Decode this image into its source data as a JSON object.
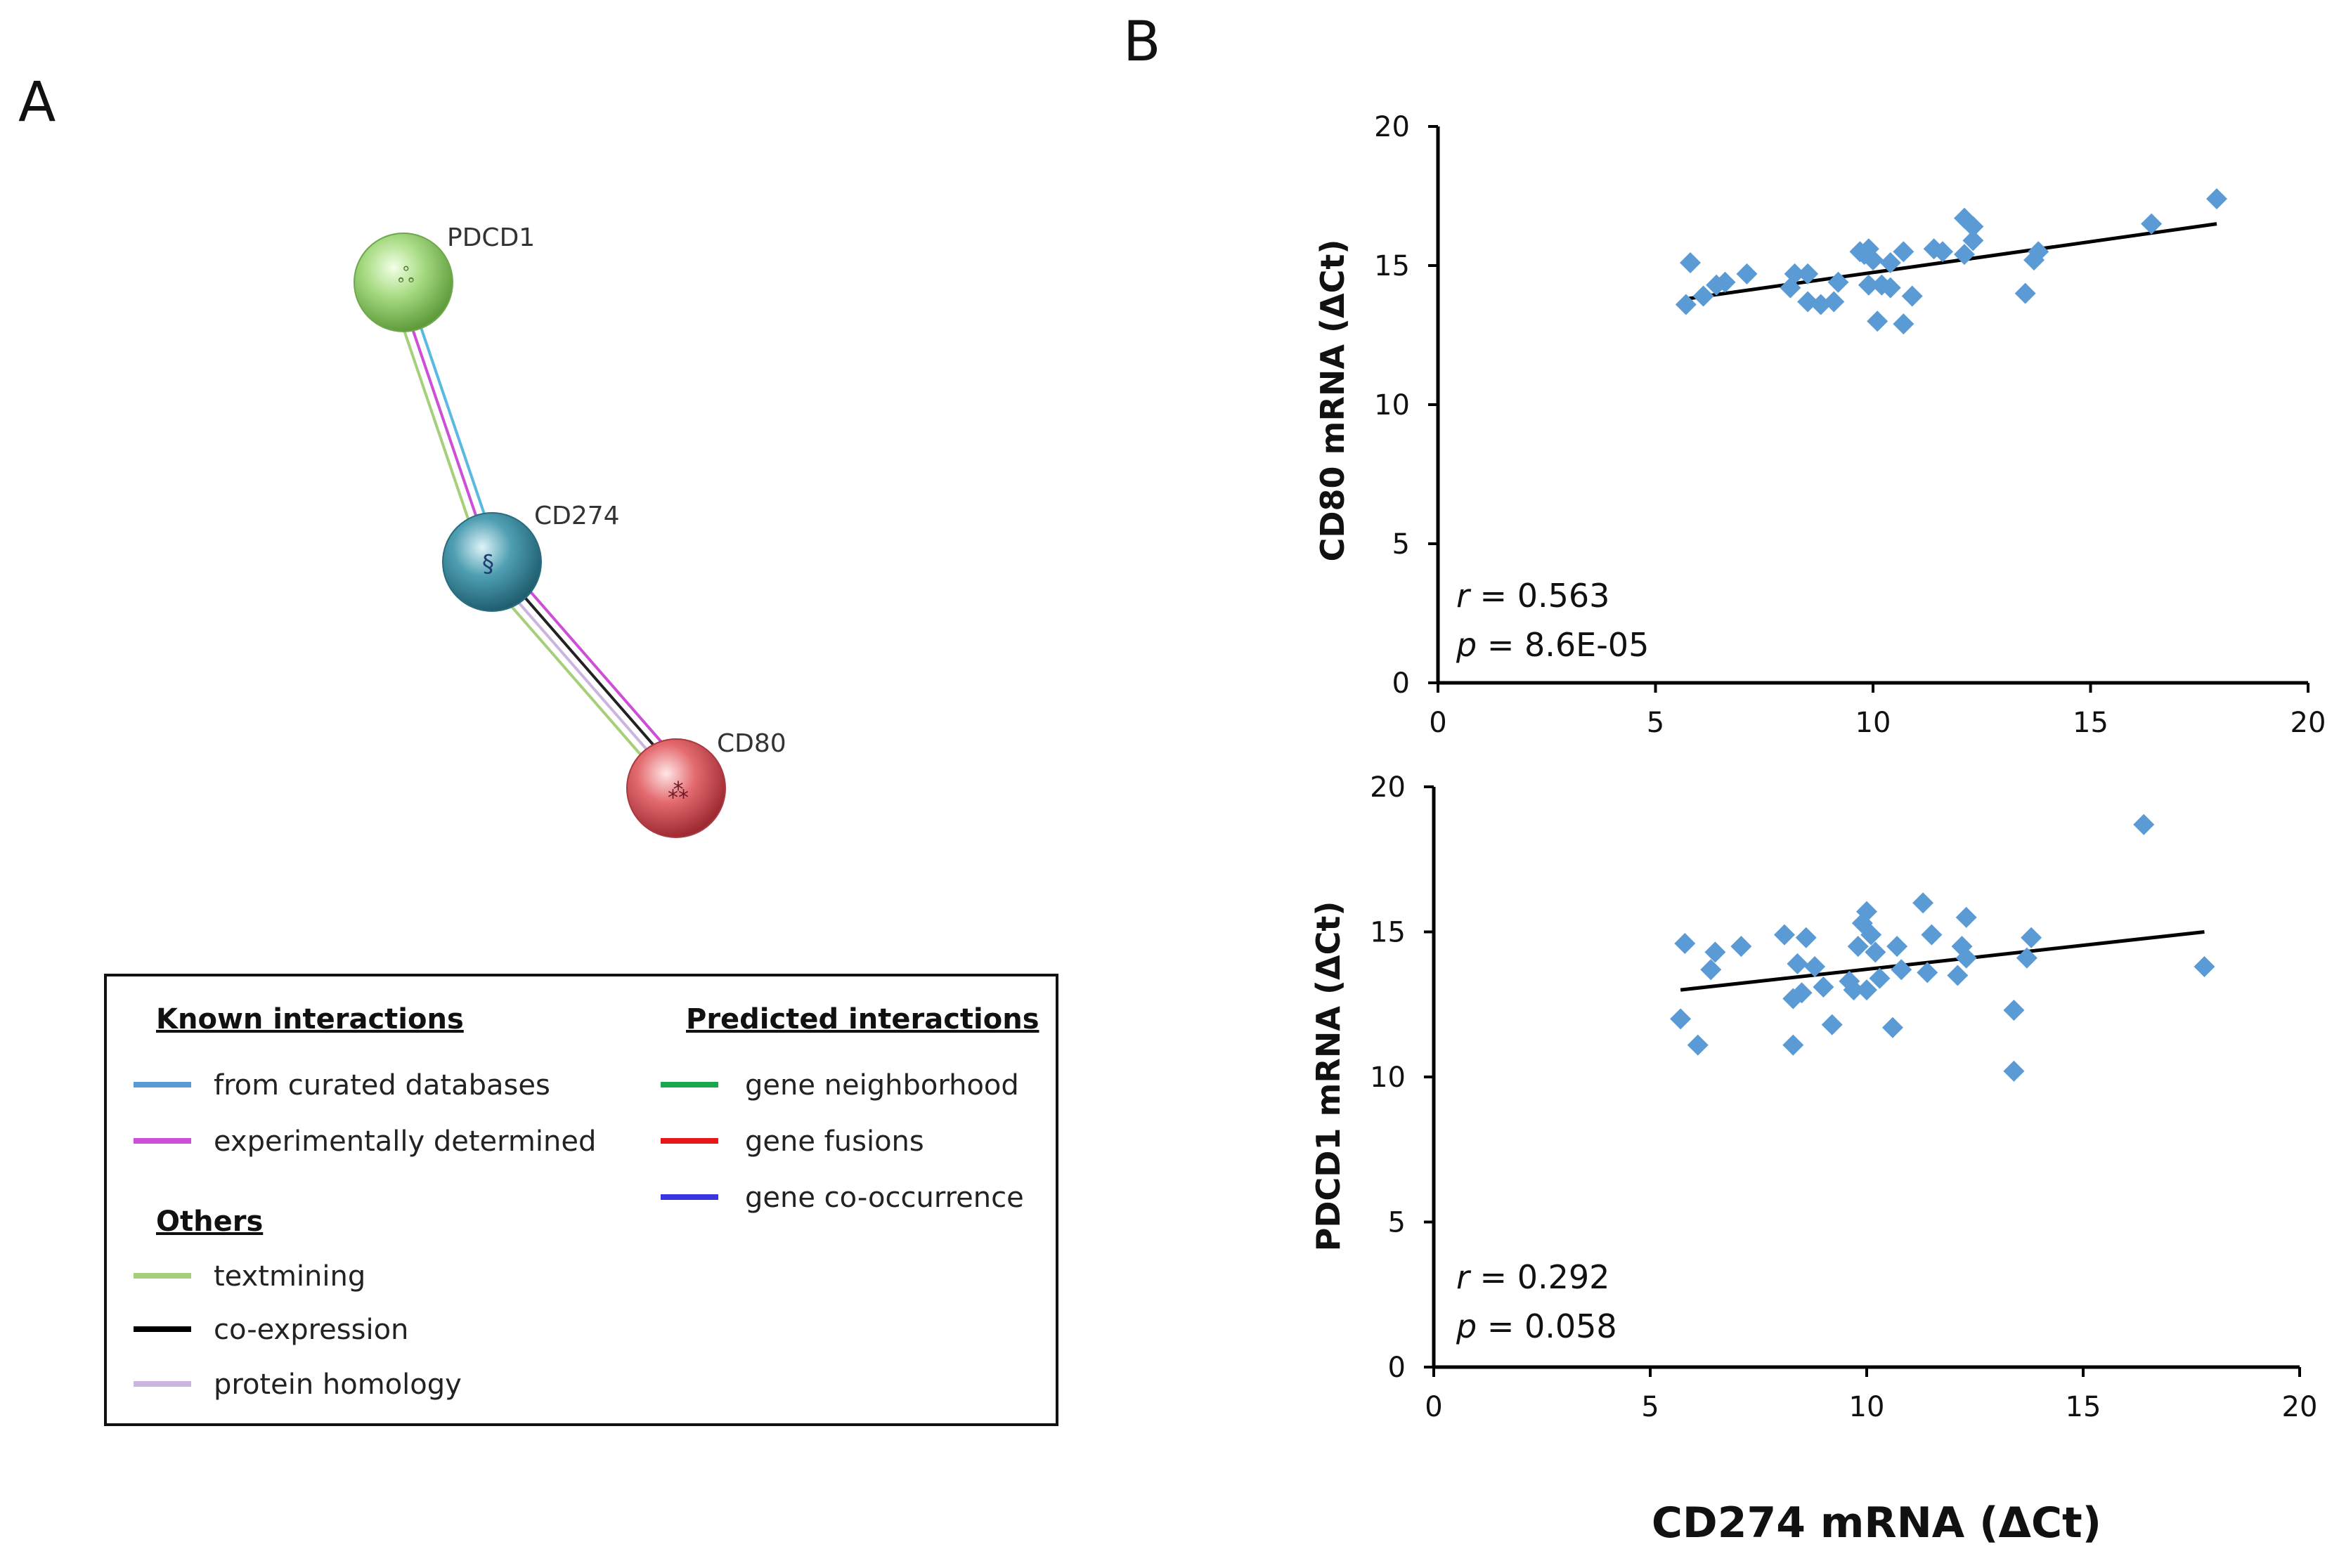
{
  "panels": {
    "a_label": "A",
    "b_label": "B"
  },
  "network": {
    "nodes": [
      {
        "name": "PDCD1",
        "color": "#8fcf6a"
      },
      {
        "name": "CD274",
        "color": "#3f8fa3"
      },
      {
        "name": "CD80",
        "color": "#d9575e"
      }
    ],
    "edges": [
      {
        "from": "PDCD1",
        "to": "CD274",
        "evidence": [
          "textmining",
          "experimentally determined",
          "from curated databases"
        ]
      },
      {
        "from": "CD274",
        "to": "CD80",
        "evidence": [
          "textmining",
          "protein homology",
          "co-expression",
          "experimentally determined"
        ]
      }
    ]
  },
  "legend": {
    "known_title": "Known interactions",
    "predicted_title": "Predicted interactions",
    "others_title": "Others",
    "known": [
      {
        "label": "from curated databases",
        "color": "#5b9bd5"
      },
      {
        "label": "experimentally determined",
        "color": "#cc4fd6"
      }
    ],
    "predicted": [
      {
        "label": "gene neighborhood",
        "color": "#1aa84f"
      },
      {
        "label": "gene fusions",
        "color": "#e8161b"
      },
      {
        "label": "gene co-occurrence",
        "color": "#3a33e0"
      }
    ],
    "others": [
      {
        "label": "textmining",
        "color": "#a6cf7a"
      },
      {
        "label": "co-expression",
        "color": "#000000"
      },
      {
        "label": "protein homology",
        "color": "#cbb5e0"
      }
    ]
  },
  "chart_data": [
    {
      "type": "scatter",
      "ylabel": "CD80 mRNA (ΔCt)",
      "xlabel": "CD274 mRNA (ΔCt)",
      "xlim": [
        0,
        20
      ],
      "ylim": [
        0,
        20
      ],
      "xticks": [
        "0",
        "5",
        "10",
        "15",
        "20"
      ],
      "yticks": [
        "0",
        "5",
        "10",
        "15",
        "20"
      ],
      "marker_color": "#5b9bd5",
      "trendline": {
        "x": [
          5.7,
          17.9
        ],
        "y": [
          13.8,
          16.5
        ]
      },
      "stats": {
        "r_label": "r",
        "r_value": " = 0.563",
        "p_label": "p",
        "p_value": " = 8.6E-05"
      },
      "points": [
        [
          5.7,
          13.6
        ],
        [
          5.8,
          15.1
        ],
        [
          6.1,
          13.9
        ],
        [
          6.4,
          14.3
        ],
        [
          6.6,
          14.4
        ],
        [
          7.1,
          14.7
        ],
        [
          8.1,
          14.2
        ],
        [
          8.2,
          14.7
        ],
        [
          8.5,
          14.7
        ],
        [
          8.5,
          13.7
        ],
        [
          8.8,
          13.6
        ],
        [
          9.1,
          13.7
        ],
        [
          9.2,
          14.4
        ],
        [
          9.7,
          15.5
        ],
        [
          9.8,
          15.4
        ],
        [
          9.9,
          15.6
        ],
        [
          9.9,
          14.3
        ],
        [
          10.0,
          15.2
        ],
        [
          10.1,
          13.0
        ],
        [
          10.2,
          14.3
        ],
        [
          10.4,
          14.2
        ],
        [
          10.4,
          15.1
        ],
        [
          10.7,
          15.5
        ],
        [
          10.7,
          12.9
        ],
        [
          10.9,
          13.9
        ],
        [
          11.4,
          15.6
        ],
        [
          11.6,
          15.5
        ],
        [
          12.1,
          16.7
        ],
        [
          12.1,
          15.4
        ],
        [
          12.3,
          15.9
        ],
        [
          12.3,
          16.4
        ],
        [
          13.5,
          14.0
        ],
        [
          13.7,
          15.2
        ],
        [
          13.8,
          15.5
        ],
        [
          16.4,
          16.5
        ],
        [
          17.9,
          17.4
        ]
      ]
    },
    {
      "type": "scatter",
      "ylabel": "PDCD1 mRNA (ΔCt)",
      "xlabel": "CD274 mRNA (ΔCt)",
      "xlim": [
        0,
        20
      ],
      "ylim": [
        0,
        20
      ],
      "xticks": [
        "0",
        "5",
        "10",
        "15",
        "20"
      ],
      "yticks": [
        "0",
        "5",
        "10",
        "15",
        "20"
      ],
      "marker_color": "#5b9bd5",
      "trendline": {
        "x": [
          5.7,
          17.8
        ],
        "y": [
          13.0,
          15.0
        ]
      },
      "stats": {
        "r_label": "r",
        "r_value": " = 0.292",
        "p_label": "p",
        "p_value": " = 0.058"
      },
      "points": [
        [
          5.7,
          12.0
        ],
        [
          5.8,
          14.6
        ],
        [
          6.1,
          11.1
        ],
        [
          6.4,
          13.7
        ],
        [
          6.5,
          14.3
        ],
        [
          7.1,
          14.5
        ],
        [
          8.1,
          14.9
        ],
        [
          8.3,
          12.7
        ],
        [
          8.3,
          11.1
        ],
        [
          8.4,
          13.9
        ],
        [
          8.5,
          12.9
        ],
        [
          8.6,
          14.8
        ],
        [
          8.8,
          13.8
        ],
        [
          9.0,
          13.1
        ],
        [
          9.2,
          11.8
        ],
        [
          9.6,
          13.3
        ],
        [
          9.7,
          13.0
        ],
        [
          9.8,
          14.5
        ],
        [
          9.9,
          15.3
        ],
        [
          10.0,
          13.0
        ],
        [
          10.0,
          15.7
        ],
        [
          10.1,
          14.9
        ],
        [
          10.2,
          14.3
        ],
        [
          10.3,
          13.4
        ],
        [
          10.6,
          11.7
        ],
        [
          10.7,
          14.5
        ],
        [
          10.8,
          13.7
        ],
        [
          11.3,
          16.0
        ],
        [
          11.4,
          13.6
        ],
        [
          11.5,
          14.9
        ],
        [
          12.1,
          13.5
        ],
        [
          12.2,
          14.5
        ],
        [
          12.3,
          15.5
        ],
        [
          12.3,
          14.1
        ],
        [
          13.4,
          12.3
        ],
        [
          13.4,
          10.2
        ],
        [
          13.7,
          14.1
        ],
        [
          13.8,
          14.8
        ],
        [
          16.4,
          18.7
        ],
        [
          17.8,
          13.8
        ]
      ]
    }
  ]
}
